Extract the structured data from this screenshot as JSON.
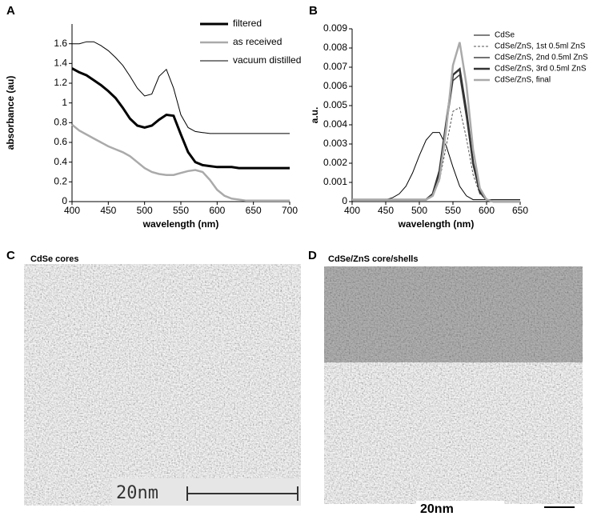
{
  "chart_data": [
    {
      "type": "line",
      "panel": "A",
      "xlabel": "wavelength (nm)",
      "ylabel": "absorbance (au)",
      "x": [
        400,
        410,
        420,
        430,
        440,
        450,
        460,
        470,
        480,
        490,
        500,
        510,
        520,
        530,
        540,
        550,
        560,
        570,
        580,
        590,
        600,
        610,
        620,
        630,
        640,
        650,
        660,
        670,
        680,
        690,
        700
      ],
      "xlim": [
        400,
        700
      ],
      "xticks": [
        400,
        450,
        500,
        550,
        600,
        650,
        700
      ],
      "ylim": [
        0,
        1.8
      ],
      "yticks": [
        0,
        0.2,
        0.4,
        0.6,
        0.8,
        1,
        1.2,
        1.4,
        1.6
      ],
      "series": [
        {
          "name": "filtered",
          "color": "#000000",
          "values": [
            1.35,
            1.31,
            1.28,
            1.23,
            1.18,
            1.12,
            1.05,
            0.95,
            0.84,
            0.77,
            0.75,
            0.77,
            0.83,
            0.88,
            0.87,
            0.68,
            0.5,
            0.4,
            0.37,
            0.36,
            0.35,
            0.35,
            0.35,
            0.34,
            0.34,
            0.34,
            0.34,
            0.34,
            0.34,
            0.34,
            0.34
          ]
        },
        {
          "name": "as received",
          "color": "#aaaaaa",
          "values": [
            0.78,
            0.72,
            0.68,
            0.64,
            0.6,
            0.56,
            0.53,
            0.5,
            0.46,
            0.4,
            0.34,
            0.3,
            0.28,
            0.27,
            0.27,
            0.29,
            0.31,
            0.32,
            0.3,
            0.22,
            0.12,
            0.06,
            0.03,
            0.02,
            0.01,
            0.01,
            0.01,
            0.01,
            0.01,
            0.01,
            0.01
          ]
        },
        {
          "name": "vacuum distilled",
          "color": "#000000",
          "values": [
            1.6,
            1.6,
            1.62,
            1.62,
            1.58,
            1.53,
            1.46,
            1.38,
            1.27,
            1.15,
            1.07,
            1.09,
            1.27,
            1.34,
            1.15,
            0.88,
            0.75,
            0.71,
            0.7,
            0.69,
            0.69,
            0.69,
            0.69,
            0.69,
            0.69,
            0.69,
            0.69,
            0.69,
            0.69,
            0.69,
            0.69
          ]
        }
      ]
    },
    {
      "type": "line",
      "panel": "B",
      "xlabel": "wavelength (nm)",
      "ylabel": "a.u.",
      "x": [
        400,
        410,
        420,
        430,
        440,
        450,
        460,
        470,
        480,
        490,
        500,
        510,
        520,
        530,
        540,
        550,
        560,
        570,
        580,
        590,
        600,
        610,
        620,
        630,
        640,
        650
      ],
      "xlim": [
        400,
        650
      ],
      "xticks": [
        400,
        450,
        500,
        550,
        600,
        650
      ],
      "ylim": [
        0,
        0.009
      ],
      "yticks": [
        0,
        0.001,
        0.002,
        0.003,
        0.004,
        0.005,
        0.006,
        0.007,
        0.008,
        0.009
      ],
      "series": [
        {
          "name": "CdSe",
          "color": "#000000",
          "values": [
            0.0001,
            0.0001,
            0.0001,
            0.0001,
            0.0001,
            0.0001,
            0.0002,
            0.0004,
            0.0008,
            0.0015,
            0.0024,
            0.0032,
            0.0036,
            0.0036,
            0.0029,
            0.0018,
            0.0008,
            0.0003,
            0.0001,
            0.0001,
            0.0001,
            0.0001,
            0.0001,
            0.0001,
            0.0001,
            0.0001
          ]
        },
        {
          "name": "CdSe/ZnS, 1st 0.5ml ZnS",
          "color": "#555555",
          "dashed": true,
          "values": [
            0.0001,
            0.0001,
            0.0001,
            0.0001,
            0.0001,
            0.0001,
            0.0001,
            0.0001,
            0.0001,
            0.0001,
            0.0001,
            0.0001,
            0.0003,
            0.0011,
            0.0029,
            0.0047,
            0.0049,
            0.0033,
            0.0014,
            0.0004,
            0.0001,
            0,
            0,
            0,
            0,
            0
          ]
        },
        {
          "name": "CdSe/ZnS, 2nd 0.5ml ZnS",
          "color": "#444444",
          "values": [
            0.0001,
            0.0001,
            0.0001,
            0.0001,
            0.0001,
            0.0001,
            0.0001,
            0.0001,
            0.0001,
            0.0001,
            0.0001,
            0.0001,
            0.0004,
            0.0015,
            0.0039,
            0.0063,
            0.0066,
            0.0044,
            0.0019,
            0.0005,
            0.0001,
            0,
            0,
            0,
            0,
            0
          ]
        },
        {
          "name": "CdSe/ZnS, 3rd 0.5ml ZnS",
          "color": "#333333",
          "values": [
            0.0001,
            0.0001,
            0.0001,
            0.0001,
            0.0001,
            0.0001,
            0.0001,
            0.0001,
            0.0001,
            0.0001,
            0.0001,
            0.0001,
            0.0004,
            0.0016,
            0.0041,
            0.0066,
            0.0069,
            0.0047,
            0.002,
            0.0005,
            0.0001,
            0,
            0,
            0,
            0,
            0
          ]
        },
        {
          "name": "CdSe/ZnS, final",
          "color": "#aaaaaa",
          "values": [
            0.0001,
            0.0001,
            0.0001,
            0.0001,
            0.0001,
            0.0001,
            0.0001,
            0.0001,
            0.0001,
            0.0001,
            0.0001,
            0.0001,
            0.0003,
            0.0012,
            0.0038,
            0.0071,
            0.0083,
            0.0061,
            0.0027,
            0.0007,
            0.0001,
            0,
            0,
            0,
            0,
            0
          ]
        }
      ]
    }
  ],
  "images": [
    {
      "panel": "C",
      "title": "CdSe cores",
      "scale_label": "20nm"
    },
    {
      "panel": "D",
      "title": "CdSe/ZnS core/shells",
      "scale_label": "20nm"
    }
  ]
}
